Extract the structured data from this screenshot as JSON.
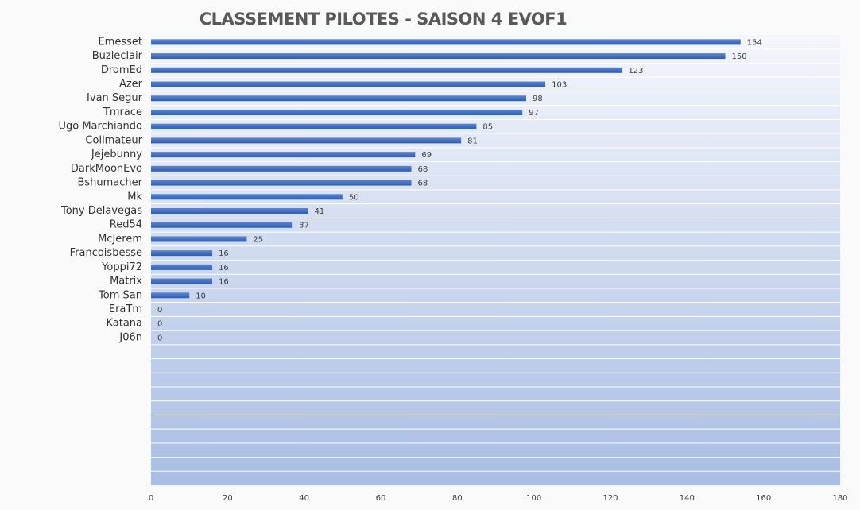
{
  "chart_data": {
    "type": "bar",
    "orientation": "horizontal",
    "title": "CLASSEMENT PILOTES - SAISON 4   EVOF1",
    "categories": [
      "Emesset",
      "Buzleclair",
      "DromEd",
      "Azer",
      "Ivan Segur",
      "Tmrace",
      "Ugo Marchiando",
      "Colimateur",
      "Jejebunny",
      "DarkMoonEvo",
      "Bshumacher",
      "Mk",
      "Tony Delavegas",
      "Red54",
      "McJerem",
      "Francoisbesse",
      "Yoppi72",
      "Matrix",
      "Tom San",
      "EraTm",
      "Katana",
      "J06n",
      null,
      null,
      null,
      null,
      null,
      null,
      null,
      null,
      null,
      null
    ],
    "values": [
      154,
      150,
      123,
      103,
      98,
      97,
      85,
      81,
      69,
      68,
      68,
      50,
      41,
      37,
      25,
      16,
      16,
      16,
      10,
      0,
      0,
      0,
      null,
      null,
      null,
      null,
      null,
      null,
      null,
      null,
      null,
      null
    ],
    "color": "#4472c4",
    "xlim": [
      0,
      180
    ],
    "xticks": [
      0,
      20,
      40,
      60,
      80,
      100,
      120,
      140,
      160,
      180
    ],
    "grid": true,
    "data_labels": true
  }
}
